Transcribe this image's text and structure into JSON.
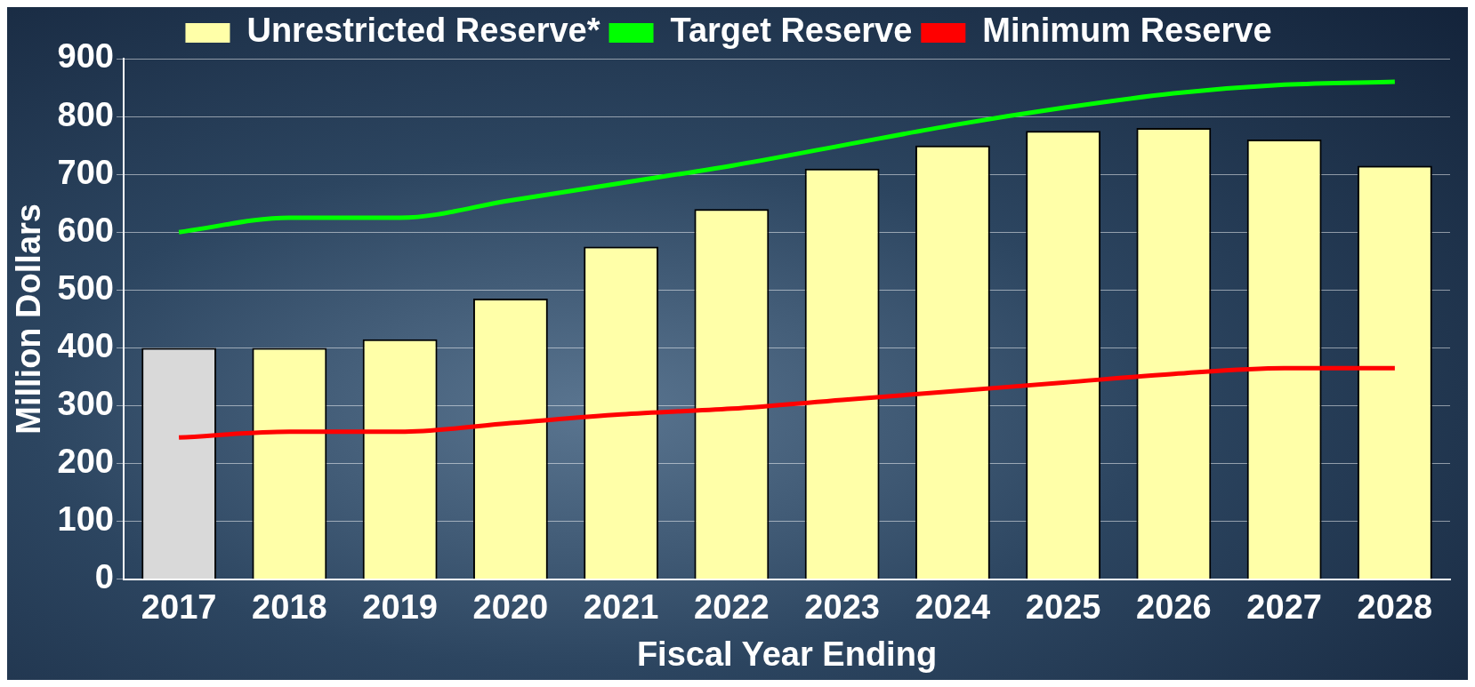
{
  "chart_data": {
    "type": "bar",
    "xlabel": "Fiscal Year Ending",
    "ylabel": "Million Dollars",
    "categories": [
      "2017",
      "2018",
      "2019",
      "2020",
      "2021",
      "2022",
      "2023",
      "2024",
      "2025",
      "2026",
      "2027",
      "2028"
    ],
    "series": [
      {
        "name": "Unrestricted Reserve*",
        "color": "#ffffa8",
        "colors": [
          "#d9d9d9",
          "#ffffa8",
          "#ffffa8",
          "#ffffa8",
          "#ffffa8",
          "#ffffa8",
          "#ffffa8",
          "#ffffa8",
          "#ffffa8",
          "#ffffa8",
          "#ffffa8",
          "#ffffa8"
        ],
        "values": [
          400,
          400,
          415,
          485,
          575,
          640,
          710,
          750,
          775,
          780,
          760,
          715
        ]
      },
      {
        "name": "Target Reserve",
        "type": "line",
        "color": "#00ff00",
        "values": [
          600,
          625,
          625,
          655,
          685,
          715,
          750,
          785,
          815,
          840,
          855,
          860
        ]
      },
      {
        "name": "Minimum Reserve",
        "type": "line",
        "color": "#ff0000",
        "values": [
          245,
          255,
          255,
          270,
          285,
          295,
          310,
          325,
          340,
          355,
          365,
          365
        ]
      }
    ],
    "ylim": [
      0,
      900
    ],
    "yticks": [
      0,
      100,
      200,
      300,
      400,
      500,
      600,
      700,
      800,
      900
    ],
    "grid": "y",
    "legend": "top",
    "marker": "none",
    "line_style": "solid"
  }
}
